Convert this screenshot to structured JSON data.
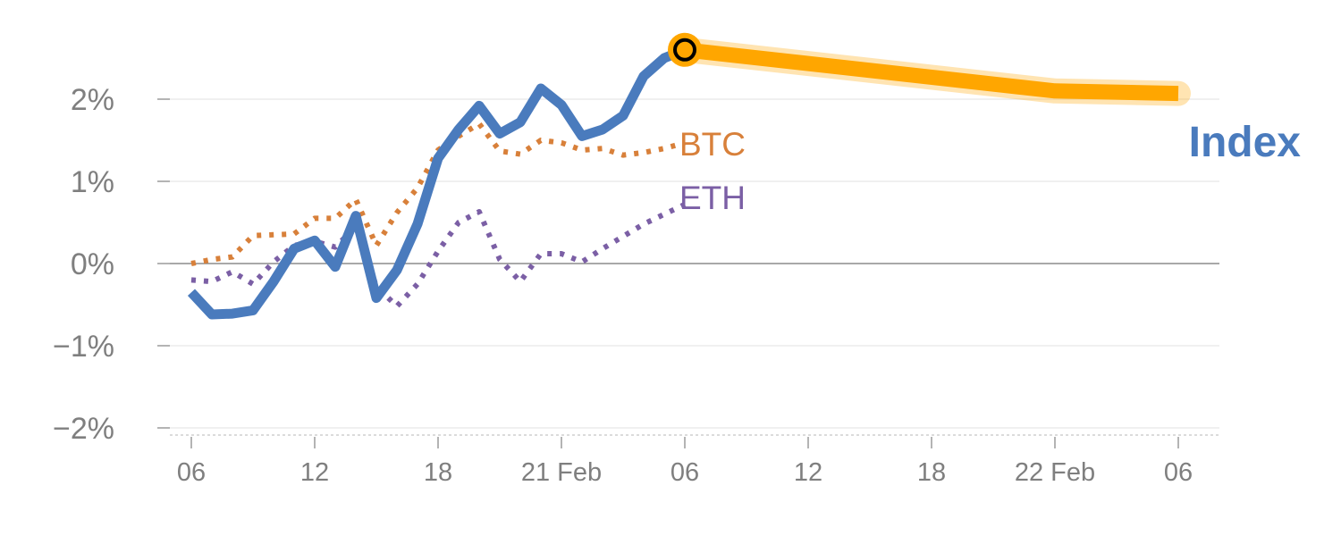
{
  "chart_data": {
    "type": "line",
    "title": "",
    "xlabel": "",
    "ylabel": "",
    "ylim": [
      -2.05,
      2.6
    ],
    "xlim": [
      0,
      48
    ],
    "grid": true,
    "x_tick_labels": [
      {
        "x": 0,
        "label": "06"
      },
      {
        "x": 6,
        "label": "12"
      },
      {
        "x": 12,
        "label": "18"
      },
      {
        "x": 18,
        "label": "21 Feb"
      },
      {
        "x": 24,
        "label": "06"
      },
      {
        "x": 30,
        "label": "12"
      },
      {
        "x": 36,
        "label": "18"
      },
      {
        "x": 42,
        "label": "22 Feb"
      },
      {
        "x": 48,
        "label": "06"
      }
    ],
    "y_ticks": [
      {
        "value": 2,
        "label": "2%"
      },
      {
        "value": 1,
        "label": "1%"
      },
      {
        "value": 0,
        "label": "0%"
      },
      {
        "value": -1,
        "label": "−1%"
      },
      {
        "value": -2,
        "label": "−2%"
      }
    ],
    "series": [
      {
        "name": "Index",
        "color": "#4a7bbd",
        "style": "solid",
        "x": [
          0,
          1,
          2,
          3,
          4,
          5,
          6,
          7,
          8,
          9,
          10,
          11,
          12,
          13,
          14,
          15,
          16,
          17,
          18,
          19,
          20,
          21,
          22,
          23,
          24
        ],
        "values": [
          -0.35,
          -0.62,
          -0.61,
          -0.57,
          -0.22,
          0.18,
          0.28,
          -0.04,
          0.58,
          -0.42,
          -0.08,
          0.48,
          1.28,
          1.63,
          1.92,
          1.58,
          1.72,
          2.13,
          1.93,
          1.55,
          1.63,
          1.8,
          2.28,
          2.5,
          2.6
        ]
      },
      {
        "name": "BTC",
        "color": "#d8803a",
        "style": "dotted",
        "x": [
          0,
          1,
          2,
          3,
          4,
          5,
          6,
          7,
          8,
          9,
          10,
          11,
          12,
          13,
          14,
          15,
          16,
          17,
          18,
          19,
          20,
          21,
          22,
          23,
          24
        ],
        "values": [
          0.0,
          0.05,
          0.08,
          0.34,
          0.35,
          0.36,
          0.55,
          0.55,
          0.78,
          0.22,
          0.62,
          0.92,
          1.38,
          1.55,
          1.7,
          1.37,
          1.33,
          1.5,
          1.47,
          1.38,
          1.4,
          1.32,
          1.35,
          1.4,
          1.47
        ]
      },
      {
        "name": "ETH",
        "color": "#7b5fa5",
        "style": "dotted",
        "x": [
          0,
          1,
          2,
          3,
          4,
          5,
          6,
          7,
          8,
          9,
          10,
          11,
          12,
          13,
          14,
          15,
          16,
          17,
          18,
          19,
          20,
          21,
          22,
          23,
          24
        ],
        "values": [
          -0.2,
          -0.22,
          -0.1,
          -0.25,
          0.02,
          0.22,
          0.27,
          0.2,
          0.45,
          -0.28,
          -0.52,
          -0.25,
          0.15,
          0.5,
          0.63,
          0.05,
          -0.22,
          0.12,
          0.12,
          0.02,
          0.18,
          0.33,
          0.48,
          0.6,
          0.72
        ]
      }
    ],
    "forecast": {
      "color": "#ffa600",
      "x": [
        24,
        42,
        48
      ],
      "values": [
        2.6,
        2.1,
        2.07
      ]
    },
    "labels": {
      "index": "Index",
      "btc": "BTC",
      "eth": "ETH"
    }
  }
}
